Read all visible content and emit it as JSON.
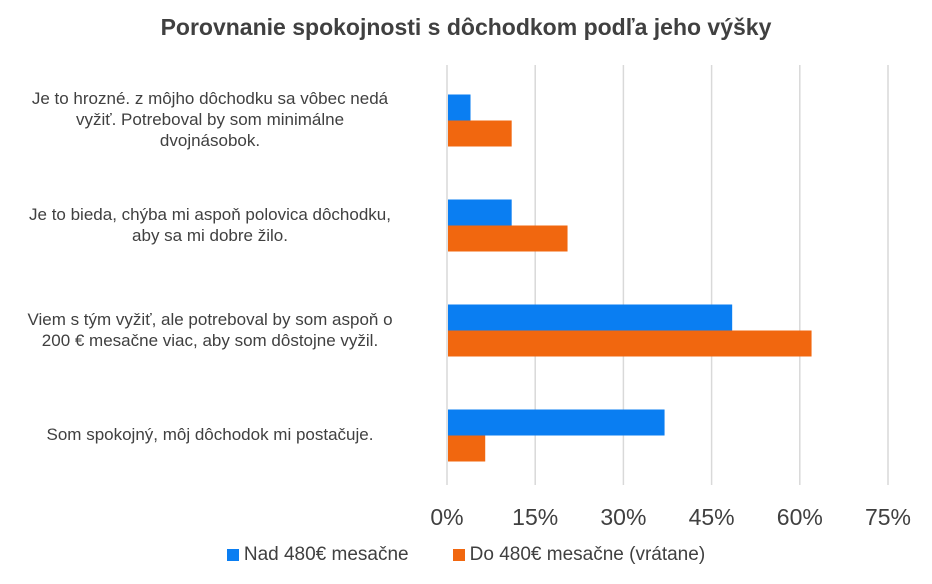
{
  "chart_data": {
    "type": "bar",
    "orientation": "horizontal",
    "title": "Porovnanie spokojnosti s dôchodkom podľa jeho výšky",
    "categories": [
      "Je to hrozné. z môjho dôchodku sa vôbec nedá vyžiť. Potreboval by som minimálne dvojnásobok.",
      "Je to bieda, chýba mi aspoň polovica dôchodku, aby sa mi dobre žilo.",
      "Viem s tým vyžiť, ale potreboval by som aspoň o 200 € mesačne viac, aby som dôstojne vyžil.",
      "Som spokojný, môj dôchodok mi postačuje."
    ],
    "category_lines": [
      [
        "Je to hrozné. z môjho dôchodku sa vôbec nedá",
        "vyžiť. Potreboval by som minimálne",
        "dvojnásobok."
      ],
      [
        "Je to bieda, chýba mi aspoň polovica dôchodku,",
        "aby sa mi dobre žilo."
      ],
      [
        "Viem s tým vyžiť, ale potreboval by som aspoň o",
        "200 € mesačne viac, aby som dôstojne vyžil."
      ],
      [
        "Som spokojný, môj dôchodok mi postačuje."
      ]
    ],
    "series": [
      {
        "name": "Nad 480€ mesačne",
        "color": "#0A7EF2",
        "values": [
          4,
          11,
          48.5,
          37
        ]
      },
      {
        "name": "Do 480€ mesačne (vrátane)",
        "color": "#F1670F",
        "values": [
          11,
          20.5,
          62,
          6.5
        ]
      }
    ],
    "xlim": [
      0,
      75
    ],
    "xticks": [
      "0%",
      "15%",
      "30%",
      "45%",
      "60%",
      "75%"
    ],
    "xtick_values": [
      0,
      15,
      30,
      45,
      60,
      75
    ],
    "xlabel": "",
    "ylabel": "",
    "grid": true,
    "legend": "bottom"
  }
}
